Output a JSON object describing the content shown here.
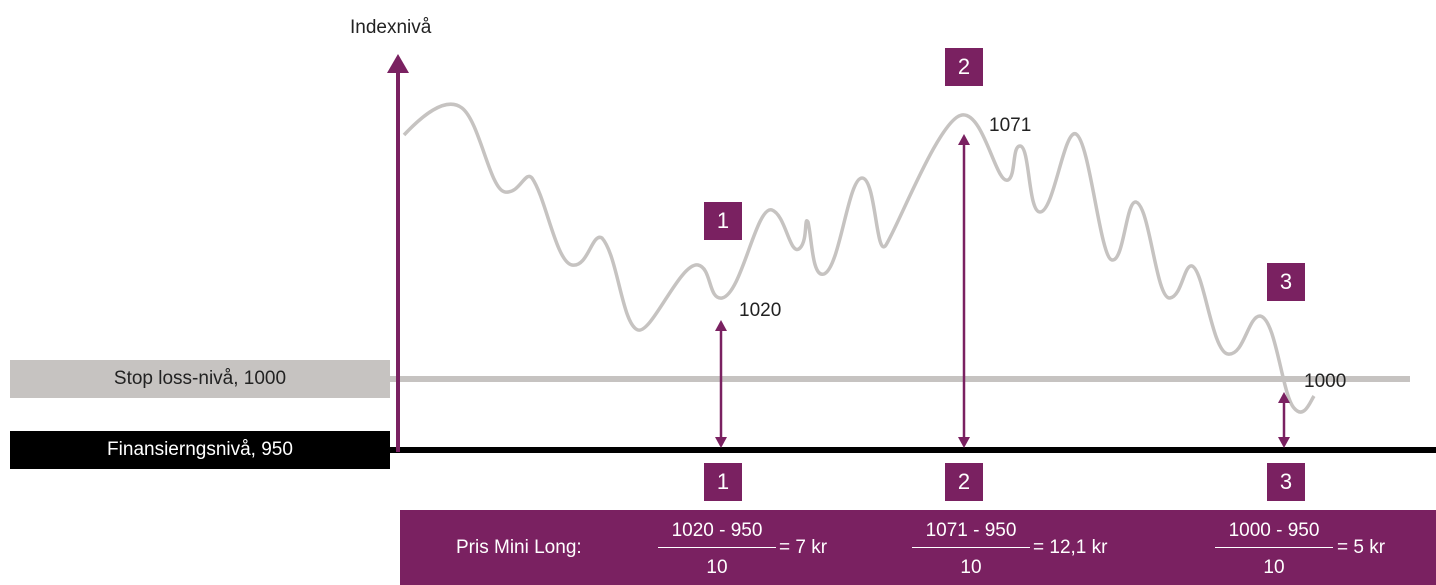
{
  "axis": {
    "y_label": "Indexnivå"
  },
  "levels": {
    "stop_loss_label": "Stop loss-nivå, 1000",
    "financing_label": "Finansierngsnivå, 950"
  },
  "points": [
    {
      "id": "1",
      "value": "1020"
    },
    {
      "id": "2",
      "value": "1071"
    },
    {
      "id": "3",
      "value": "1000"
    }
  ],
  "formula": {
    "title": "Pris Mini Long:",
    "items": [
      {
        "numerator": "1020 - 950",
        "denominator": "10",
        "result": "= 7 kr"
      },
      {
        "numerator": "1071 - 950",
        "denominator": "10",
        "result": "= 12,1 kr"
      },
      {
        "numerator": "1000 - 950",
        "denominator": "10",
        "result": "= 5 kr"
      }
    ]
  },
  "colors": {
    "accent": "#7a2161",
    "curve": "#c6c3c1",
    "stop_loss": "#c6c3c1",
    "financing": "#000000"
  }
}
